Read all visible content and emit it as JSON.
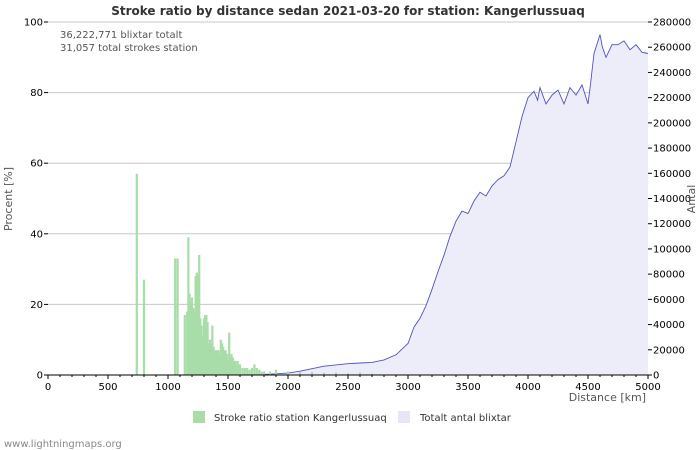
{
  "chart_data": {
    "type": "bar",
    "title": "Stroke ratio by distance sedan 2021-03-20 for station: Kangerlussuaq",
    "info_lines": [
      "36,222,771 blixtar totalt",
      "31,057 total strokes station"
    ],
    "xlabel": "Distance   [km]",
    "ylabel_left": "Procent   [%]",
    "ylabel_right": "Antal",
    "xlim": [
      0,
      5000
    ],
    "ylim_left": [
      0,
      100
    ],
    "ylim_right": [
      0,
      280000
    ],
    "x_ticks": [
      "0",
      "500",
      "1000",
      "1500",
      "2000",
      "2500",
      "3000",
      "3500",
      "4000",
      "4500",
      "5000"
    ],
    "y_ticks_left": [
      "0",
      "20",
      "40",
      "60",
      "80",
      "100"
    ],
    "y_ticks_right": [
      "0",
      "20000",
      "40000",
      "60000",
      "80000",
      "100000",
      "120000",
      "140000",
      "160000",
      "180000",
      "200000",
      "220000",
      "240000",
      "260000",
      "280000"
    ],
    "legend": [
      "Stroke ratio station Kangerlussuaq",
      "Totalt antal blixtar"
    ],
    "footer": "www.lightningmaps.org",
    "colors": {
      "bars": "#a8dca8",
      "area_fill": "#ededfa",
      "line": "#5050c8",
      "legend_area": "#e6e6f8"
    },
    "series": [
      {
        "name": "Stroke ratio station Kangerlussuaq",
        "axis": "left",
        "style": "bars",
        "x": [
          740,
          800,
          1060,
          1080,
          1140,
          1160,
          1170,
          1180,
          1190,
          1200,
          1210,
          1220,
          1230,
          1240,
          1250,
          1260,
          1270,
          1280,
          1290,
          1300,
          1310,
          1320,
          1330,
          1340,
          1350,
          1360,
          1370,
          1380,
          1390,
          1400,
          1410,
          1420,
          1430,
          1440,
          1450,
          1460,
          1470,
          1480,
          1490,
          1500,
          1510,
          1520,
          1530,
          1540,
          1550,
          1560,
          1570,
          1580,
          1590,
          1600,
          1620,
          1640,
          1660,
          1680,
          1700,
          1720,
          1740,
          1760,
          1780,
          1800,
          1850,
          1900,
          2000,
          2100,
          2200,
          2300,
          2400,
          2500,
          2600,
          2700
        ],
        "values": [
          57,
          27,
          33,
          33,
          17,
          18,
          39,
          23,
          21,
          22,
          19,
          18,
          28,
          29,
          28,
          34,
          16,
          14,
          11,
          16,
          17,
          17,
          15,
          9,
          10,
          9,
          14,
          8,
          7,
          7,
          7,
          7,
          6,
          10,
          9,
          8,
          7,
          7,
          6,
          4,
          12,
          5,
          6,
          5,
          4,
          4,
          3,
          4,
          3,
          3,
          2,
          2,
          2,
          1.5,
          2,
          3,
          2,
          1.5,
          1,
          1,
          1,
          1.5,
          1,
          0.8,
          0.8,
          0.6,
          0.7,
          0.5,
          0.7,
          0.4
        ]
      },
      {
        "name": "Totalt antal blixtar",
        "axis": "right",
        "style": "area",
        "x": [
          0,
          500,
          1000,
          1500,
          1800,
          2000,
          2100,
          2200,
          2300,
          2400,
          2500,
          2600,
          2700,
          2800,
          2900,
          3000,
          3050,
          3100,
          3150,
          3200,
          3250,
          3300,
          3350,
          3400,
          3450,
          3500,
          3550,
          3600,
          3650,
          3700,
          3750,
          3800,
          3850,
          3900,
          3950,
          4000,
          4050,
          4080,
          4100,
          4150,
          4200,
          4250,
          4300,
          4350,
          4400,
          4450,
          4500,
          4520,
          4550,
          4600,
          4620,
          4650,
          4700,
          4750,
          4800,
          4850,
          4900,
          4950,
          5000
        ],
        "values": [
          0,
          0,
          0,
          0,
          500,
          1500,
          3000,
          5000,
          7000,
          8000,
          9000,
          9500,
          10000,
          12000,
          16000,
          25000,
          38000,
          45000,
          55000,
          68000,
          82000,
          95000,
          110000,
          122000,
          130000,
          128000,
          138000,
          145000,
          142000,
          150000,
          155000,
          158000,
          165000,
          185000,
          205000,
          220000,
          225000,
          218000,
          228000,
          215000,
          222000,
          226000,
          215000,
          228000,
          222000,
          230000,
          215000,
          230000,
          255000,
          270000,
          260000,
          252000,
          262000,
          262000,
          265000,
          258000,
          262000,
          256000,
          255000
        ]
      }
    ]
  }
}
